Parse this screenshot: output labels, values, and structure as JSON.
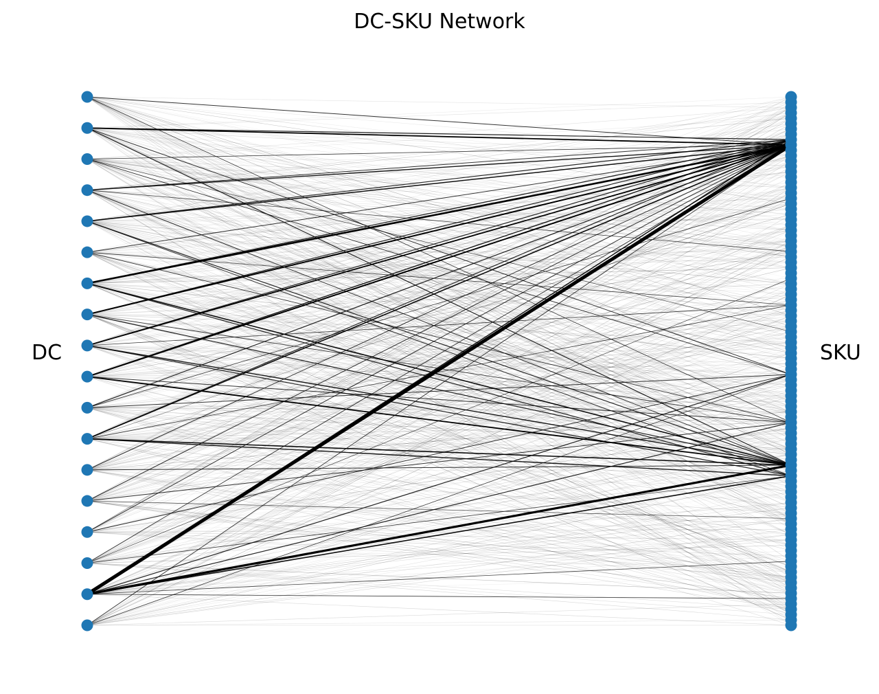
{
  "title": "DC-SKU Network",
  "left_group_label": "DC",
  "right_group_label": "SKU",
  "colors": {
    "node": "#1f77b4",
    "edge": "#000000",
    "background": "#ffffff"
  },
  "network": {
    "dc_count": 18,
    "sku_count": 100,
    "strong_edges": [
      {
        "dc": 1,
        "sku": 10,
        "weight": 1.0
      },
      {
        "dc": 2,
        "sku": 10,
        "weight": 1.8
      },
      {
        "dc": 2,
        "sku": 9,
        "weight": 1.2
      },
      {
        "dc": 3,
        "sku": 10,
        "weight": 0.8
      },
      {
        "dc": 4,
        "sku": 10,
        "weight": 1.4
      },
      {
        "dc": 4,
        "sku": 9,
        "weight": 1.0
      },
      {
        "dc": 5,
        "sku": 10,
        "weight": 1.5
      },
      {
        "dc": 5,
        "sku": 9,
        "weight": 1.2
      },
      {
        "dc": 6,
        "sku": 10,
        "weight": 1.0
      },
      {
        "dc": 7,
        "sku": 10,
        "weight": 2.6
      },
      {
        "dc": 7,
        "sku": 9,
        "weight": 1.3
      },
      {
        "dc": 8,
        "sku": 10,
        "weight": 2.0
      },
      {
        "dc": 8,
        "sku": 9,
        "weight": 1.2
      },
      {
        "dc": 9,
        "sku": 10,
        "weight": 1.8
      },
      {
        "dc": 9,
        "sku": 9,
        "weight": 1.2
      },
      {
        "dc": 10,
        "sku": 10,
        "weight": 2.0
      },
      {
        "dc": 10,
        "sku": 9,
        "weight": 1.4
      },
      {
        "dc": 11,
        "sku": 10,
        "weight": 1.2
      },
      {
        "dc": 12,
        "sku": 10,
        "weight": 1.6
      },
      {
        "dc": 12,
        "sku": 9,
        "weight": 1.2
      },
      {
        "dc": 13,
        "sku": 10,
        "weight": 1.0
      },
      {
        "dc": 14,
        "sku": 10,
        "weight": 1.0
      },
      {
        "dc": 15,
        "sku": 10,
        "weight": 1.0
      },
      {
        "dc": 16,
        "sku": 10,
        "weight": 0.9
      },
      {
        "dc": 17,
        "sku": 10,
        "weight": 5.0
      },
      {
        "dc": 17,
        "sku": 9,
        "weight": 1.5
      },
      {
        "dc": 17,
        "sku": 70,
        "weight": 3.2
      },
      {
        "dc": 17,
        "sku": 72,
        "weight": 1.6
      },
      {
        "dc": 17,
        "sku": 53,
        "weight": 1.2
      },
      {
        "dc": 17,
        "sku": 62,
        "weight": 1.2
      },
      {
        "dc": 18,
        "sku": 10,
        "weight": 0.9
      },
      {
        "dc": 2,
        "sku": 70,
        "weight": 1.2
      },
      {
        "dc": 4,
        "sku": 70,
        "weight": 1.0
      },
      {
        "dc": 5,
        "sku": 70,
        "weight": 1.2
      },
      {
        "dc": 7,
        "sku": 70,
        "weight": 1.6
      },
      {
        "dc": 7,
        "sku": 72,
        "weight": 1.2
      },
      {
        "dc": 8,
        "sku": 70,
        "weight": 1.2
      },
      {
        "dc": 9,
        "sku": 70,
        "weight": 1.4
      },
      {
        "dc": 9,
        "sku": 72,
        "weight": 1.2
      },
      {
        "dc": 10,
        "sku": 70,
        "weight": 1.8
      },
      {
        "dc": 10,
        "sku": 62,
        "weight": 1.0
      },
      {
        "dc": 12,
        "sku": 70,
        "weight": 1.6
      },
      {
        "dc": 12,
        "sku": 72,
        "weight": 1.4
      },
      {
        "dc": 13,
        "sku": 70,
        "weight": 1.0
      },
      {
        "dc": 14,
        "sku": 62,
        "weight": 1.0
      },
      {
        "dc": 11,
        "sku": 53,
        "weight": 1.0
      },
      {
        "dc": 15,
        "sku": 53,
        "weight": 1.0
      },
      {
        "dc": 3,
        "sku": 53,
        "weight": 0.9
      },
      {
        "dc": 6,
        "sku": 62,
        "weight": 0.9
      },
      {
        "dc": 1,
        "sku": 62,
        "weight": 0.8
      },
      {
        "dc": 16,
        "sku": 72,
        "weight": 0.8
      },
      {
        "dc": 18,
        "sku": 53,
        "weight": 0.8
      },
      {
        "dc": 2,
        "sku": 53,
        "weight": 1.0
      },
      {
        "dc": 5,
        "sku": 72,
        "weight": 1.0
      },
      {
        "dc": 8,
        "sku": 62,
        "weight": 0.9
      },
      {
        "dc": 4,
        "sku": 30,
        "weight": 0.8
      },
      {
        "dc": 6,
        "sku": 40,
        "weight": 0.8
      },
      {
        "dc": 9,
        "sku": 40,
        "weight": 0.8
      },
      {
        "dc": 12,
        "sku": 40,
        "weight": 0.8
      },
      {
        "dc": 17,
        "sku": 95,
        "weight": 0.8
      },
      {
        "dc": 17,
        "sku": 88,
        "weight": 0.8
      },
      {
        "dc": 11,
        "sku": 20,
        "weight": 0.8
      },
      {
        "dc": 3,
        "sku": 45,
        "weight": 0.7
      },
      {
        "dc": 14,
        "sku": 80,
        "weight": 0.7
      },
      {
        "dc": 16,
        "sku": 35,
        "weight": 0.7
      }
    ]
  }
}
